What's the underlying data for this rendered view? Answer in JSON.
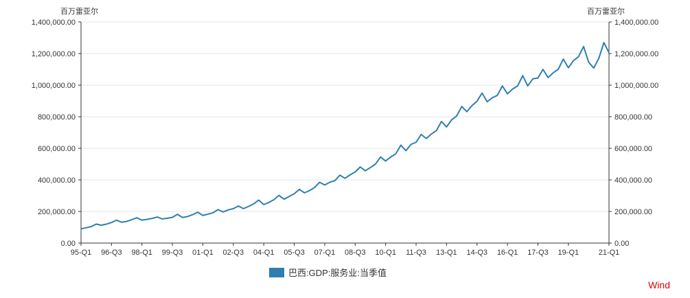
{
  "unit_left": "百万雷亚尔",
  "unit_right": "百万雷亚尔",
  "watermark": "Wind",
  "colors": {
    "series": "#2f7eb0",
    "grid": "#e6e6e6",
    "axis": "#333333",
    "watermark": "#e00000"
  },
  "chart_data": {
    "type": "line",
    "title": "",
    "xlabel": "",
    "ylabel": "百万雷亚尔",
    "ylim": [
      0,
      1400000
    ],
    "yticks": [
      0,
      200000,
      400000,
      600000,
      800000,
      1000000,
      1200000,
      1400000
    ],
    "ytick_labels": [
      "0.00",
      "200,000.00",
      "400,000.00",
      "600,000.00",
      "800,000.00",
      "1,000,000.00",
      "1,200,000.00",
      "1,400,000.00"
    ],
    "xtick_labels": [
      "95-Q1",
      "96-Q3",
      "98-Q1",
      "99-Q3",
      "01-Q1",
      "02-Q3",
      "04-Q1",
      "05-Q3",
      "07-Q1",
      "08-Q3",
      "10-Q1",
      "11-Q3",
      "13-Q1",
      "14-Q3",
      "16-Q1",
      "17-Q3",
      "19-Q1",
      "21-Q1"
    ],
    "xtick_index": [
      0,
      6,
      12,
      18,
      24,
      30,
      36,
      42,
      48,
      54,
      60,
      66,
      72,
      78,
      84,
      90,
      96,
      104
    ],
    "grid": true,
    "legend": "bottom-center",
    "series": [
      {
        "name": "巴西:GDP:服务业:当季值",
        "values": [
          90000,
          97000,
          104000,
          120000,
          113000,
          120000,
          130000,
          145000,
          132000,
          137000,
          148000,
          160000,
          145000,
          150000,
          156000,
          165000,
          153000,
          157000,
          163000,
          182000,
          162000,
          168000,
          180000,
          195000,
          175000,
          183000,
          192000,
          212000,
          197000,
          210000,
          218000,
          235000,
          218000,
          232000,
          248000,
          272000,
          244000,
          257000,
          275000,
          302000,
          278000,
          295000,
          312000,
          340000,
          318000,
          332000,
          352000,
          385000,
          368000,
          385000,
          395000,
          430000,
          410000,
          432000,
          450000,
          482000,
          458000,
          478000,
          500000,
          545000,
          520000,
          545000,
          565000,
          620000,
          585000,
          625000,
          638000,
          688000,
          662000,
          690000,
          712000,
          770000,
          735000,
          780000,
          805000,
          865000,
          832000,
          870000,
          898000,
          950000,
          895000,
          920000,
          935000,
          995000,
          945000,
          975000,
          995000,
          1060000,
          995000,
          1040000,
          1045000,
          1100000,
          1048000,
          1078000,
          1100000,
          1165000,
          1110000,
          1155000,
          1180000,
          1245000,
          1145000,
          1108000,
          1170000,
          1270000,
          1205000
        ]
      }
    ]
  }
}
